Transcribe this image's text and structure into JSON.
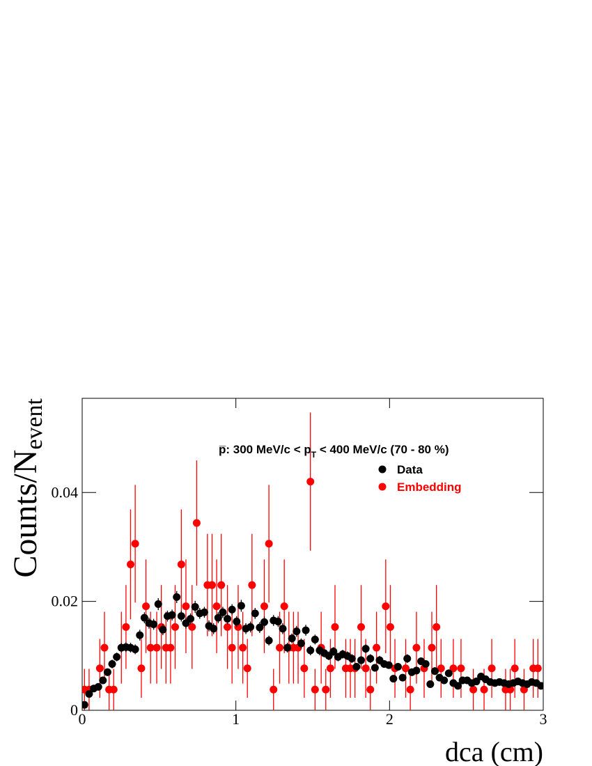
{
  "chart_data": {
    "type": "scatter",
    "annotation_prefix": "p̅: 300 MeV/c < p",
    "annotation_subscript": "T",
    "annotation_suffix": " < 400 MeV/c (70 - 80 %)",
    "xlabel": "dca (cm)",
    "ylabel": "Counts/N",
    "ylabel_subscript": "event",
    "xlim": [
      0,
      3
    ],
    "ylim": [
      0,
      0.0573
    ],
    "xticks": [
      0,
      1,
      2,
      3
    ],
    "yticks": [
      0,
      0.02,
      0.04
    ],
    "series": [
      {
        "name": "Data",
        "color": "#000000",
        "x": [
          0.015,
          0.045,
          0.075,
          0.105,
          0.135,
          0.165,
          0.195,
          0.225,
          0.255,
          0.285,
          0.315,
          0.345,
          0.375,
          0.405,
          0.435,
          0.465,
          0.495,
          0.525,
          0.555,
          0.585,
          0.615,
          0.645,
          0.675,
          0.705,
          0.735,
          0.765,
          0.795,
          0.825,
          0.855,
          0.885,
          0.915,
          0.945,
          0.975,
          1.005,
          1.035,
          1.065,
          1.095,
          1.125,
          1.155,
          1.185,
          1.215,
          1.245,
          1.275,
          1.305,
          1.335,
          1.365,
          1.395,
          1.425,
          1.455,
          1.485,
          1.515,
          1.545,
          1.575,
          1.605,
          1.635,
          1.665,
          1.695,
          1.725,
          1.755,
          1.785,
          1.815,
          1.845,
          1.875,
          1.905,
          1.935,
          1.965,
          1.995,
          2.025,
          2.055,
          2.085,
          2.115,
          2.145,
          2.175,
          2.205,
          2.235,
          2.265,
          2.295,
          2.325,
          2.355,
          2.385,
          2.415,
          2.445,
          2.475,
          2.505,
          2.535,
          2.565,
          2.595,
          2.625,
          2.655,
          2.685,
          2.715,
          2.745,
          2.775,
          2.805,
          2.835,
          2.865,
          2.895,
          2.925,
          2.955,
          2.985
        ],
        "values": [
          0.001,
          0.003,
          0.004,
          0.0043,
          0.0055,
          0.007,
          0.0085,
          0.0098,
          0.0115,
          0.0116,
          0.0115,
          0.0112,
          0.0138,
          0.017,
          0.016,
          0.0158,
          0.0195,
          0.0148,
          0.0173,
          0.0175,
          0.0208,
          0.0173,
          0.016,
          0.0168,
          0.019,
          0.0178,
          0.018,
          0.0155,
          0.015,
          0.017,
          0.018,
          0.0168,
          0.0185,
          0.0163,
          0.0192,
          0.015,
          0.0153,
          0.0178,
          0.0152,
          0.0162,
          0.0128,
          0.0165,
          0.0163,
          0.015,
          0.0115,
          0.0132,
          0.0145,
          0.0123,
          0.0147,
          0.011,
          0.013,
          0.011,
          0.0105,
          0.01,
          0.0108,
          0.0098,
          0.0103,
          0.01,
          0.0095,
          0.008,
          0.0092,
          0.0113,
          0.0095,
          0.0078,
          0.0092,
          0.0085,
          0.0083,
          0.0058,
          0.008,
          0.006,
          0.0095,
          0.007,
          0.0073,
          0.009,
          0.0085,
          0.0048,
          0.0072,
          0.006,
          0.0055,
          0.0068,
          0.005,
          0.0045,
          0.0055,
          0.0055,
          0.005,
          0.0053,
          0.0062,
          0.0057,
          0.0052,
          0.005,
          0.0052,
          0.005,
          0.0048,
          0.005,
          0.0053,
          0.005,
          0.0048,
          0.0052,
          0.005,
          0.0045
        ],
        "errors": [
          0.0004,
          0.0005,
          0.0006,
          0.0006,
          0.0007,
          0.0007,
          0.0008,
          0.0008,
          0.0009,
          0.0009,
          0.0009,
          0.0009,
          0.001,
          0.001,
          0.001,
          0.001,
          0.0011,
          0.001,
          0.001,
          0.001,
          0.0011,
          0.001,
          0.001,
          0.001,
          0.0011,
          0.001,
          0.001,
          0.001,
          0.001,
          0.001,
          0.001,
          0.001,
          0.001,
          0.001,
          0.0011,
          0.001,
          0.001,
          0.001,
          0.001,
          0.001,
          0.0009,
          0.001,
          0.001,
          0.001,
          0.0009,
          0.0009,
          0.001,
          0.0009,
          0.001,
          0.0009,
          0.0009,
          0.0009,
          0.0008,
          0.0008,
          0.0008,
          0.0008,
          0.0008,
          0.0008,
          0.0008,
          0.0007,
          0.0008,
          0.0008,
          0.0008,
          0.0007,
          0.0008,
          0.0007,
          0.0007,
          0.0006,
          0.0007,
          0.0006,
          0.0008,
          0.0007,
          0.0007,
          0.0007,
          0.0007,
          0.0005,
          0.0007,
          0.0006,
          0.0006,
          0.0007,
          0.0006,
          0.0005,
          0.0006,
          0.0006,
          0.0006,
          0.0006,
          0.0006,
          0.0006,
          0.0006,
          0.0006,
          0.0006,
          0.0006,
          0.0005,
          0.0006,
          0.0006,
          0.0006,
          0.0005,
          0.0006,
          0.0006,
          0.0005
        ]
      },
      {
        "name": "Embedding",
        "color": "#ff0000",
        "x": [
          0.015,
          0.045,
          0.115,
          0.145,
          0.175,
          0.205,
          0.255,
          0.285,
          0.315,
          0.345,
          0.385,
          0.415,
          0.445,
          0.485,
          0.515,
          0.545,
          0.575,
          0.605,
          0.645,
          0.675,
          0.715,
          0.745,
          0.815,
          0.845,
          0.875,
          0.905,
          0.945,
          0.975,
          1.015,
          1.045,
          1.075,
          1.105,
          1.185,
          1.215,
          1.245,
          1.285,
          1.315,
          1.345,
          1.375,
          1.405,
          1.445,
          1.485,
          1.515,
          1.555,
          1.585,
          1.615,
          1.645,
          1.715,
          1.745,
          1.775,
          1.815,
          1.845,
          1.875,
          1.915,
          1.975,
          2.005,
          2.035,
          2.105,
          2.135,
          2.175,
          2.225,
          2.275,
          2.305,
          2.335,
          2.415,
          2.465,
          2.545,
          2.615,
          2.665,
          2.755,
          2.785,
          2.815,
          2.875,
          2.935,
          2.965
        ],
        "values": [
          0.0038,
          0.0038,
          0.0077,
          0.0115,
          0.0038,
          0.0038,
          0.0115,
          0.0153,
          0.0268,
          0.0306,
          0.0077,
          0.0191,
          0.0115,
          0.0115,
          0.0153,
          0.0115,
          0.0115,
          0.0153,
          0.0268,
          0.0191,
          0.0153,
          0.0344,
          0.023,
          0.023,
          0.0191,
          0.023,
          0.0153,
          0.0115,
          0.0153,
          0.0115,
          0.0077,
          0.023,
          0.0191,
          0.0306,
          0.0038,
          0.0115,
          0.0191,
          0.0115,
          0.0115,
          0.0115,
          0.0077,
          0.042,
          0.0038,
          0.0115,
          0.0038,
          0.0077,
          0.0153,
          0.0077,
          0.0077,
          0.0077,
          0.0153,
          0.0077,
          0.0038,
          0.0115,
          0.0191,
          0.0153,
          0.0077,
          0.0077,
          0.0038,
          0.0115,
          0.0077,
          0.0115,
          0.0153,
          0.0077,
          0.0077,
          0.0077,
          0.0038,
          0.0038,
          0.0077,
          0.0038,
          0.0038,
          0.0077,
          0.0038,
          0.0077,
          0.0077
        ],
        "errors": [
          0.0038,
          0.0038,
          0.0054,
          0.0066,
          0.0038,
          0.0038,
          0.0066,
          0.0077,
          0.0101,
          0.0108,
          0.0054,
          0.0086,
          0.0066,
          0.0066,
          0.0077,
          0.0066,
          0.0066,
          0.0077,
          0.0101,
          0.0086,
          0.0077,
          0.0115,
          0.0094,
          0.0094,
          0.0086,
          0.0094,
          0.0077,
          0.0066,
          0.0077,
          0.0066,
          0.0054,
          0.0094,
          0.0086,
          0.0108,
          0.0038,
          0.0066,
          0.0086,
          0.0066,
          0.0066,
          0.0066,
          0.0054,
          0.0127,
          0.0038,
          0.0066,
          0.0038,
          0.0054,
          0.0077,
          0.0054,
          0.0054,
          0.0054,
          0.0077,
          0.0054,
          0.0038,
          0.0066,
          0.0086,
          0.0077,
          0.0054,
          0.0054,
          0.0038,
          0.0066,
          0.0054,
          0.0066,
          0.0077,
          0.0054,
          0.0054,
          0.0054,
          0.0038,
          0.0038,
          0.0054,
          0.0038,
          0.0038,
          0.0054,
          0.0038,
          0.0054,
          0.0054
        ]
      }
    ]
  }
}
